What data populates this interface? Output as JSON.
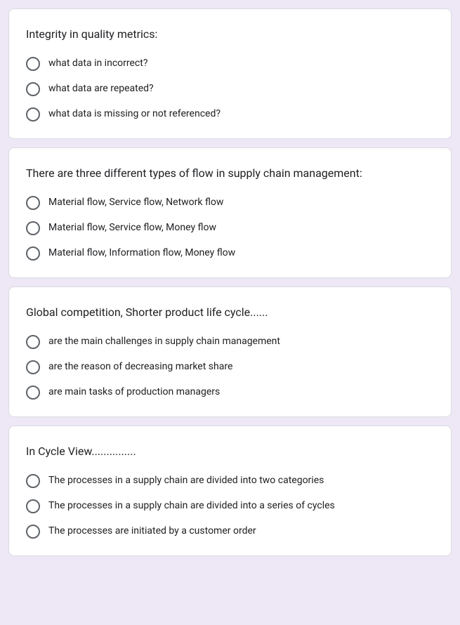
{
  "colors": {
    "page_background": "#ede7f6",
    "card_background": "#ffffff",
    "card_border": "#dadce0",
    "text_primary": "#202124",
    "radio_border": "#5f6368"
  },
  "typography": {
    "question_fontsize": 16,
    "option_fontsize": 14,
    "font_family": "Roboto, Helvetica Neue, Arial, sans-serif"
  },
  "layout": {
    "card_border_radius": 8,
    "card_padding": 24,
    "card_margin_bottom": 12,
    "radio_size": 20,
    "radio_border_width": 2
  },
  "questions": [
    {
      "title": "Integrity in quality metrics:",
      "options": [
        "what data in incorrect?",
        "what data are repeated?",
        "what data is missing or not referenced?"
      ]
    },
    {
      "title": "There are three different types of flow in supply chain management:",
      "options": [
        "Material flow, Service flow, Network flow",
        "Material flow, Service flow, Money flow",
        "Material flow, Information flow, Money flow"
      ]
    },
    {
      "title": "Global competition, Shorter product life cycle......",
      "options": [
        "are the main challenges in supply chain management",
        "are the reason of decreasing market share",
        "are main tasks of production managers"
      ]
    },
    {
      "title": "In Cycle View...............",
      "options": [
        "The processes in a supply chain are divided into two categories",
        "The processes in a supply chain are divided into a series of cycles",
        "The processes are initiated by a customer order"
      ]
    }
  ]
}
